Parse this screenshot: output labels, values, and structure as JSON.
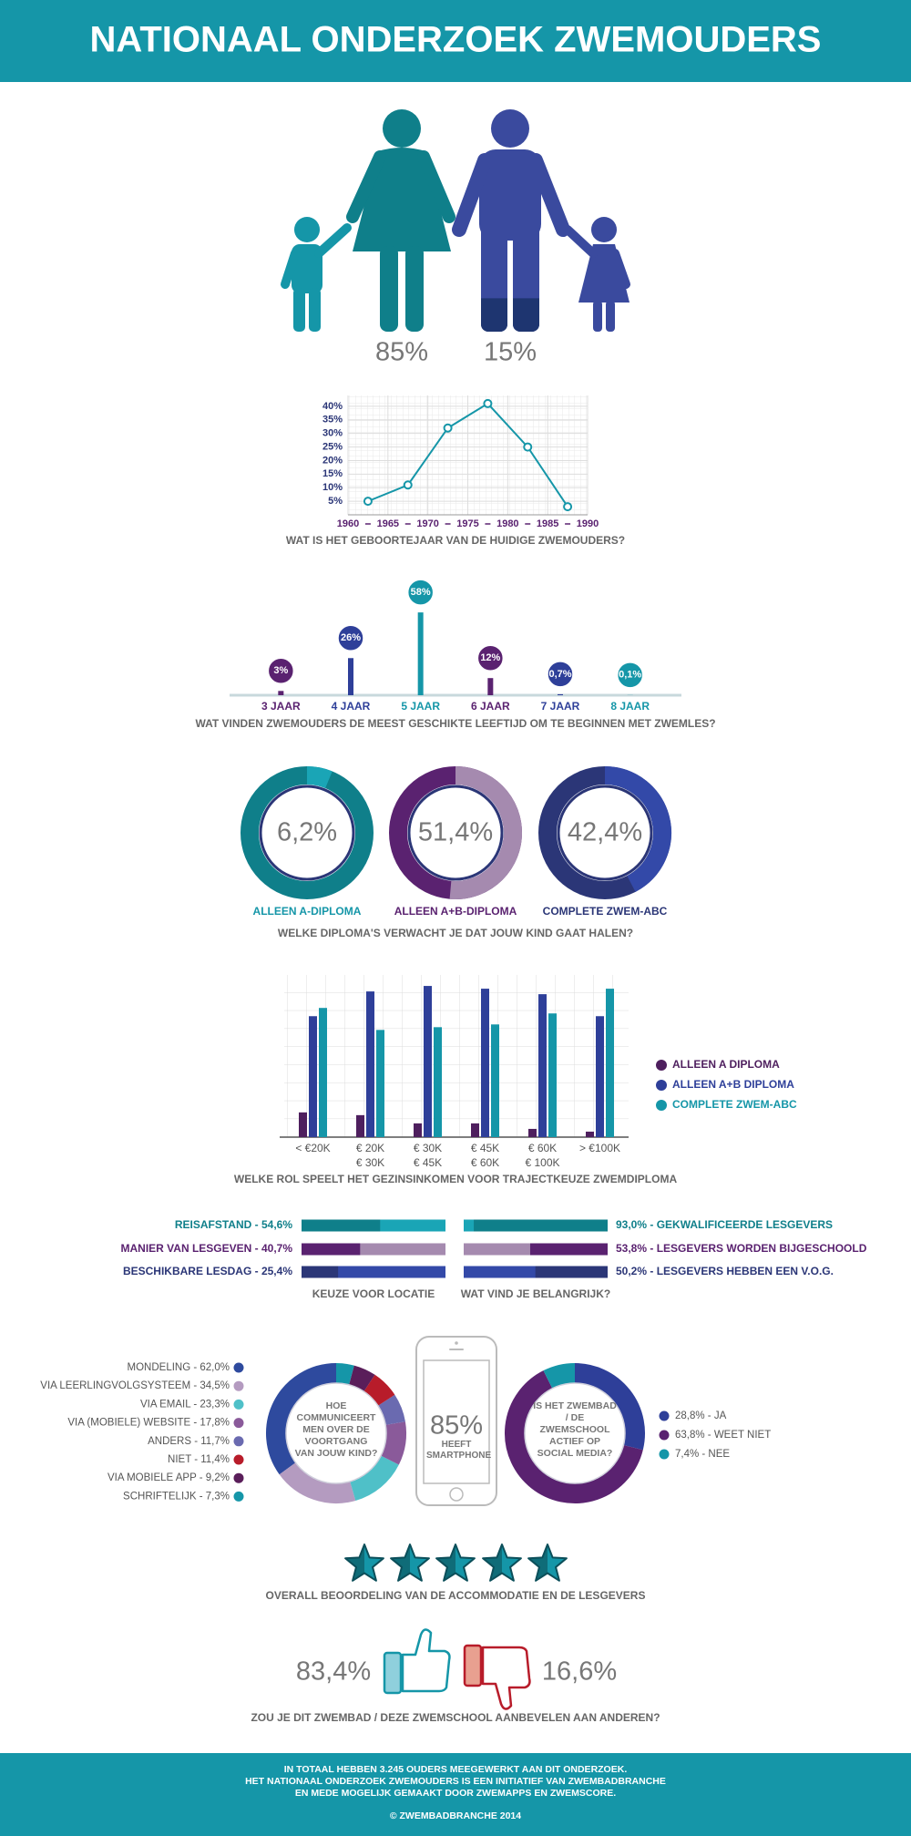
{
  "header": {
    "title": "NATIONAAL ONDERZOEK ZWEMOUDERS"
  },
  "chart_data": [
    {
      "type": "pictogram",
      "values": [
        85,
        15
      ],
      "value_labels": [
        "85%",
        "15%"
      ],
      "colors": [
        "#0f7f8a",
        "#3a4a9e"
      ],
      "fill_color": "#1e3570"
    },
    {
      "type": "line",
      "title": "WAT IS HET GEBOORTEJAAR VAN DE HUIDIGE ZWEMOUDERS?",
      "x": [
        1962.5,
        1967.5,
        1972.5,
        1977.5,
        1982.5,
        1987.5
      ],
      "series": [
        {
          "color": "#1596a8",
          "values": [
            5,
            11,
            32,
            41,
            25,
            3
          ]
        }
      ],
      "xlim": [
        1960,
        1990
      ],
      "xticks": [
        1960,
        1965,
        1970,
        1975,
        1980,
        1985,
        1990
      ],
      "ylim": [
        0,
        44
      ],
      "yticks": [
        {
          "value": 5,
          "label": "5%"
        },
        {
          "value": 10,
          "label": "10%"
        },
        {
          "value": 15,
          "label": "15%"
        },
        {
          "value": 20,
          "label": "20%"
        },
        {
          "value": 25,
          "label": "25%"
        },
        {
          "value": 30,
          "label": "30%"
        },
        {
          "value": 35,
          "label": "35%"
        },
        {
          "value": 40,
          "label": "40%"
        }
      ],
      "grid": true
    },
    {
      "type": "lollipop",
      "title": "WAT VINDEN ZWEMOUDERS DE MEEST GESCHIKTE LEEFTIJD OM TE BEGINNEN MET ZWEMLES?",
      "categories": [
        "3 JAAR",
        "4 JAAR",
        "5 JAAR",
        "6 JAAR",
        "7 JAAR",
        "8 JAAR"
      ],
      "values": [
        3,
        26,
        58,
        12,
        0.7,
        0.1
      ],
      "value_labels": [
        "3%",
        "26%",
        "58%",
        "12%",
        "0,7%",
        "0,1%"
      ],
      "colors": [
        "#5a2270",
        "#2e3f99",
        "#1596a8",
        "#5a2270",
        "#2e3f99",
        "#1596a8"
      ],
      "ylim": [
        0,
        60
      ]
    },
    {
      "type": "ring",
      "title": "WELKE DIPLOMA'S VERWACHT JE DAT JOUW KIND GAAT HALEN?",
      "categories": [
        "ALLEEN A-DIPLOMA",
        "ALLEEN A+B-DIPLOMA",
        "COMPLETE ZWEM-ABC"
      ],
      "values": [
        6.2,
        51.4,
        42.4
      ],
      "value_labels": [
        "6,2%",
        "51,4%",
        "42,4%"
      ],
      "colors": [
        "#1aa5b6",
        "#a58aaf",
        "#3349a8"
      ],
      "track_colors": [
        "#0f7f8a",
        "#5a2270",
        "#2b3677"
      ],
      "label_colors": [
        "#1596a8",
        "#5a2270",
        "#2b3677"
      ]
    },
    {
      "type": "bar",
      "title": "WELKE ROL SPEELT HET GEZINSINKOMEN VOOR TRAJECTKEUZE ZWEMDIPLOMA",
      "categories": [
        "< €20K",
        "€ 20K\n€ 30K",
        "€ 30K\n€ 45K",
        "€ 45K\n€ 60K",
        "€ 60K\n€ 100K",
        "> €100K"
      ],
      "series": [
        {
          "name": "ALLEEN A DIPLOMA",
          "color": "#4e1f5e",
          "values": [
            9,
            8,
            5,
            5,
            3,
            2
          ]
        },
        {
          "name": "ALLEEN A+B DIPLOMA",
          "color": "#2e3f99",
          "values": [
            44,
            53,
            55,
            54,
            52,
            44
          ]
        },
        {
          "name": "COMPLETE ZWEM-ABC",
          "color": "#1596a8",
          "values": [
            47,
            39,
            40,
            41,
            45,
            54
          ]
        }
      ],
      "ylim": [
        0,
        59
      ],
      "grid": true,
      "legend": "right"
    },
    {
      "type": "split-bar",
      "groups": [
        {
          "title": "KEUZE VOOR LOCATIE",
          "align": "left",
          "items": [
            {
              "label": "REISAFSTAND - 54,6%",
              "value": 54.6,
              "color": "#0f7f8a",
              "track_color": "#1aa5b6"
            },
            {
              "label": "MANIER VAN LESGEVEN - 40,7%",
              "value": 40.7,
              "color": "#5a2270",
              "track_color": "#a58aaf"
            },
            {
              "label": "BESCHIKBARE LESDAG - 25,4%",
              "value": 25.4,
              "color": "#2b3677",
              "track_color": "#3349a8"
            }
          ]
        },
        {
          "title": "WAT VIND JE BELANGRIJK?",
          "align": "right",
          "items": [
            {
              "label": "93,0% - GEKWALIFICEERDE LESGEVERS",
              "value": 93.0,
              "color": "#0f7f8a",
              "track_color": "#1aa5b6"
            },
            {
              "label": "53,8% - LESGEVERS WORDEN BIJGESCHOOLD",
              "value": 53.8,
              "color": "#5a2270",
              "track_color": "#a58aaf"
            },
            {
              "label": "50,2% - LESGEVERS HEBBEN EEN V.O.G.",
              "value": 50.2,
              "color": "#2b3677",
              "track_color": "#3349a8"
            }
          ]
        }
      ]
    },
    {
      "type": "donut",
      "center_text": "HOE COMMUNICEERT MEN OVER DE VOORTGANG VAN JOUW KIND?",
      "categories": [
        "MONDELING - 62,0%",
        "VIA LEERLINGVOLGSYSTEEM - 34,5%",
        "VIA EMAIL - 23,3%",
        "VIA (MOBIELE) WEBSITE - 17,8%",
        "ANDERS - 11,7%",
        "NIET - 11,4%",
        "VIA MOBIELE APP - 9,2%",
        "SCHRIFTELIJK - 7,3%"
      ],
      "values": [
        62.0,
        34.5,
        23.3,
        17.8,
        11.7,
        11.4,
        9.2,
        7.3
      ],
      "colors": [
        "#2e4a9e",
        "#b49bc0",
        "#4fc0c8",
        "#8a5a9a",
        "#6a6ab0",
        "#b81c2a",
        "#5a1e5a",
        "#1596a8"
      ],
      "legend": "left"
    },
    {
      "type": "stat",
      "value": 85,
      "value_label": "85%",
      "text": "HEEFT SMARTPHONE"
    },
    {
      "type": "donut",
      "center_text": "IS HET ZWEMBAD / DE ZWEMSCHOOL ACTIEF OP SOCIAL MEDIA?",
      "categories": [
        "28,8% - JA",
        "63,8% - WEET NIET",
        "7,4% - NEE"
      ],
      "values": [
        28.8,
        63.8,
        7.4
      ],
      "colors": [
        "#2e3f99",
        "#5a2270",
        "#1596a8"
      ],
      "legend": "right"
    },
    {
      "type": "thumbs",
      "title": "ZOU JE DIT ZWEMBAD / DEZE ZWEMSCHOOL AANBEVELEN AAN ANDEREN?",
      "values": [
        83.4,
        16.6
      ],
      "value_labels": [
        "83,4%",
        "16,6%"
      ],
      "colors": [
        "#1596a8",
        "#b81c2a"
      ]
    }
  ],
  "rating": {
    "caption": "OVERALL BEOORDELING VAN DE ACCOMMODATIE EN DE LESGEVERS"
  },
  "footer": {
    "lines": [
      "IN TOTAAL HEBBEN 3.245 OUDERS MEEGEWERKT AAN DIT ONDERZOEK.",
      "HET NATIONAAL ONDERZOEK ZWEMOUDERS IS EEN INITIATIEF VAN ZWEMBADBRANCHE",
      "EN MEDE MOGELIJK GEMAAKT DOOR ZWEMAPPS EN ZWEMSCORE."
    ],
    "copyright": "© ZWEMBADBRANCHE 2014"
  }
}
